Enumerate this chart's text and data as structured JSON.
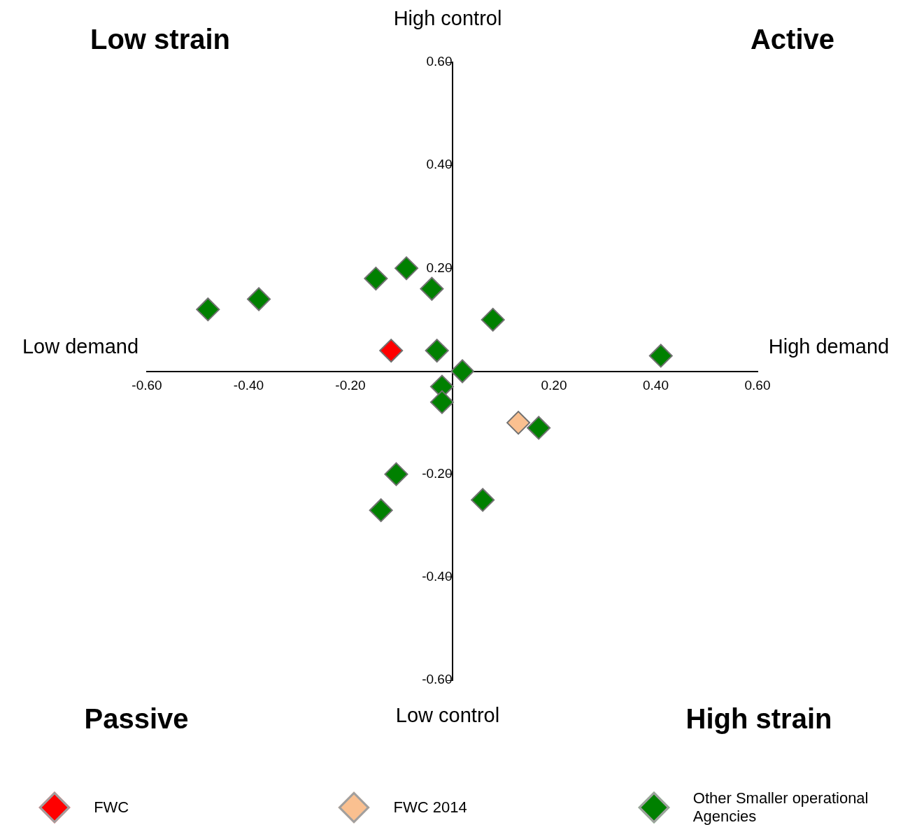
{
  "chart_data": {
    "type": "scatter",
    "marker": "diamond",
    "legend": "bottom",
    "grid": false,
    "xlim": [
      -0.6,
      0.6
    ],
    "ylim": [
      -0.6,
      0.6
    ],
    "xticks": [
      {
        "value": -0.6,
        "label": "-0.60"
      },
      {
        "value": -0.4,
        "label": "-0.40"
      },
      {
        "value": -0.2,
        "label": "-0.20"
      },
      {
        "value": 0.2,
        "label": "0.20"
      },
      {
        "value": 0.4,
        "label": "0.40"
      },
      {
        "value": 0.6,
        "label": "0.60"
      }
    ],
    "yticks": [
      {
        "value": -0.6,
        "label": "-0.60"
      },
      {
        "value": -0.4,
        "label": "-0.40"
      },
      {
        "value": -0.2,
        "label": "-0.20"
      },
      {
        "value": 0.2,
        "label": "0.20"
      },
      {
        "value": 0.4,
        "label": "0.40"
      },
      {
        "value": 0.6,
        "label": "0.60"
      }
    ],
    "annotations": [
      "High control",
      "Low control",
      "Low demand",
      "High demand",
      "Low strain",
      "Active",
      "Passive",
      "High strain"
    ],
    "series": [
      {
        "name": "FWC",
        "color": "#ff0000",
        "x": [
          -0.12
        ],
        "values": [
          0.04
        ]
      },
      {
        "name": "FWC 2014",
        "color": "#fac090",
        "x": [
          0.13
        ],
        "values": [
          -0.1
        ]
      },
      {
        "name": "Other Smaller operational Agencies",
        "color": "#008000",
        "x": [
          -0.48,
          -0.38,
          -0.15,
          -0.09,
          -0.04,
          0.08,
          -0.03,
          0.02,
          -0.02,
          -0.02,
          0.41,
          0.17,
          -0.11,
          0.06,
          -0.14
        ],
        "values": [
          0.12,
          0.14,
          0.18,
          0.2,
          0.16,
          0.1,
          0.04,
          0.0,
          -0.03,
          -0.06,
          0.03,
          -0.11,
          -0.2,
          -0.25,
          -0.27
        ]
      }
    ]
  }
}
